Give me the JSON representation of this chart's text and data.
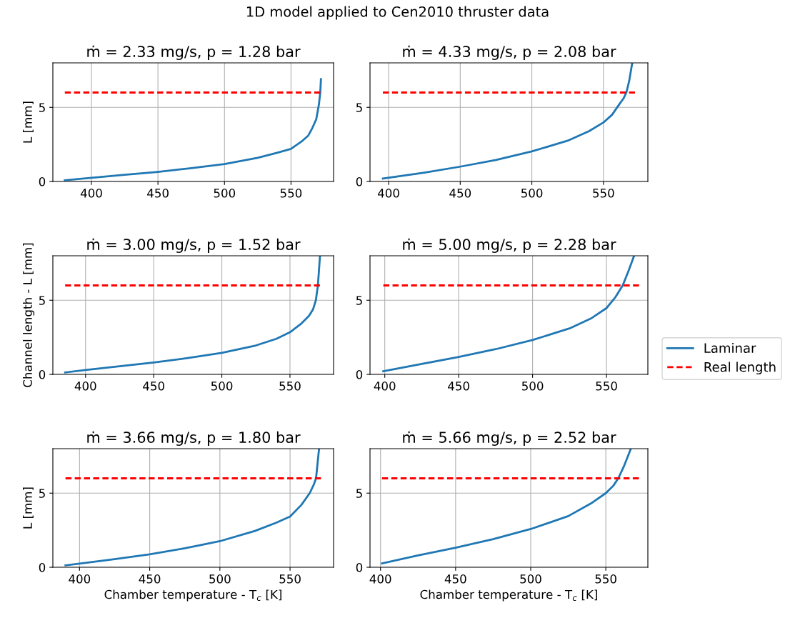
{
  "chart_data": [
    {
      "type": "line",
      "title": "ṁ = 2.33 mg/s, p = 1.28 bar",
      "ylabel": "L [mm]",
      "legend": "right",
      "annotations": [
        "1D model applied to Cen2010 thruster data"
      ],
      "xlim": [
        371,
        582
      ],
      "xticks": [
        400,
        450,
        500,
        550
      ],
      "ylim": [
        0,
        8
      ],
      "yticks": [
        0,
        5
      ],
      "grid": true,
      "series": [
        {
          "name": "Laminar",
          "color": "#1f77b4",
          "line_style": "solid",
          "x": [
            380,
            400,
            425,
            450,
            475,
            500,
            525,
            540,
            550,
            558,
            563,
            566,
            569,
            571,
            572,
            572.5
          ],
          "values": [
            0.08,
            0.25,
            0.45,
            0.65,
            0.9,
            1.17,
            1.6,
            1.95,
            2.2,
            2.7,
            3.1,
            3.6,
            4.2,
            5.2,
            6.0,
            6.9
          ]
        },
        {
          "name": "Real length",
          "color": "#ff0000",
          "line_style": "dashed",
          "x": [
            380,
            572
          ],
          "values": [
            6,
            6
          ]
        }
      ]
    },
    {
      "type": "line",
      "title": "ṁ = 4.33 mg/s, p = 2.08 bar",
      "xlim": [
        387,
        581
      ],
      "xticks": [
        400,
        450,
        500,
        550
      ],
      "ylim": [
        0,
        8
      ],
      "yticks": [
        0,
        5
      ],
      "grid": true,
      "series": [
        {
          "color": "#1f77b4",
          "line_style": "solid",
          "x": [
            396,
            425,
            450,
            475,
            500,
            525,
            540,
            550,
            556,
            561,
            564,
            566,
            568,
            570
          ],
          "values": [
            0.2,
            0.6,
            1.0,
            1.45,
            2.03,
            2.75,
            3.4,
            3.98,
            4.5,
            5.2,
            5.6,
            6.0,
            6.8,
            7.95
          ]
        },
        {
          "color": "#ff0000",
          "line_style": "dashed",
          "x": [
            396,
            572
          ],
          "values": [
            6,
            6
          ]
        }
      ]
    },
    {
      "type": "line",
      "title": "ṁ = 3.00 mg/s, p = 1.52 bar",
      "ylabel": "Channel length - L [mm]",
      "xlim": [
        376,
        582
      ],
      "xticks": [
        400,
        450,
        500,
        550
      ],
      "ylim": [
        0,
        8
      ],
      "yticks": [
        0,
        5
      ],
      "grid": true,
      "series": [
        {
          "color": "#1f77b4",
          "line_style": "solid",
          "x": [
            385,
            400,
            425,
            450,
            475,
            500,
            525,
            540,
            550,
            558,
            564,
            567,
            569,
            570.5,
            572
          ],
          "values": [
            0.13,
            0.3,
            0.55,
            0.8,
            1.1,
            1.45,
            1.95,
            2.4,
            2.84,
            3.4,
            3.95,
            4.4,
            5.0,
            6.0,
            7.95
          ]
        },
        {
          "color": "#ff0000",
          "line_style": "dashed",
          "x": [
            385,
            572
          ],
          "values": [
            6,
            6
          ]
        }
      ]
    },
    {
      "type": "line",
      "title": "ṁ = 5.00 mg/s, p = 2.28 bar",
      "xlim": [
        390,
        578
      ],
      "xticks": [
        400,
        450,
        500,
        550
      ],
      "ylim": [
        0,
        8
      ],
      "yticks": [
        0,
        5
      ],
      "grid": true,
      "series": [
        {
          "color": "#1f77b4",
          "line_style": "solid",
          "x": [
            399,
            425,
            450,
            475,
            500,
            525,
            540,
            550,
            556,
            561,
            565,
            568.5
          ],
          "values": [
            0.21,
            0.7,
            1.18,
            1.7,
            2.32,
            3.1,
            3.8,
            4.47,
            5.2,
            6.0,
            7.0,
            7.95
          ]
        },
        {
          "color": "#ff0000",
          "line_style": "dashed",
          "x": [
            399,
            572
          ],
          "values": [
            6,
            6
          ]
        }
      ]
    },
    {
      "type": "line",
      "title": "ṁ = 3.66 mg/s, p = 1.80 bar",
      "ylabel": "L [mm]",
      "xlabel": "Chamber temperature - T$_{c}$ [K]",
      "xlim": [
        381,
        581
      ],
      "xticks": [
        400,
        450,
        500,
        550
      ],
      "ylim": [
        0,
        8
      ],
      "yticks": [
        0,
        5
      ],
      "grid": true,
      "series": [
        {
          "color": "#1f77b4",
          "line_style": "solid",
          "x": [
            390,
            400,
            425,
            450,
            475,
            500,
            525,
            540,
            550,
            558,
            564,
            567,
            568.5,
            570.6
          ],
          "values": [
            0.13,
            0.25,
            0.55,
            0.87,
            1.28,
            1.76,
            2.45,
            3.0,
            3.42,
            4.2,
            5.0,
            5.6,
            6.0,
            7.95
          ]
        },
        {
          "color": "#ff0000",
          "line_style": "dashed",
          "x": [
            390,
            572
          ],
          "values": [
            6,
            6
          ]
        }
      ]
    },
    {
      "type": "line",
      "title": "ṁ = 5.66 mg/s, p = 2.52 bar",
      "xlabel": "Chamber temperature - T$_{c}$ [K]",
      "xlim": [
        393,
        578
      ],
      "xticks": [
        400,
        450,
        500,
        550
      ],
      "ylim": [
        0,
        8
      ],
      "yticks": [
        0,
        5
      ],
      "grid": true,
      "series": [
        {
          "color": "#1f77b4",
          "line_style": "solid",
          "x": [
            401,
            425,
            450,
            475,
            500,
            525,
            540,
            550,
            555,
            558.3,
            562,
            566.5
          ],
          "values": [
            0.26,
            0.8,
            1.32,
            1.9,
            2.58,
            3.45,
            4.3,
            5.0,
            5.5,
            6.0,
            6.8,
            7.95
          ]
        },
        {
          "color": "#ff0000",
          "line_style": "dashed",
          "x": [
            401,
            572
          ],
          "values": [
            6,
            6
          ]
        }
      ]
    }
  ]
}
